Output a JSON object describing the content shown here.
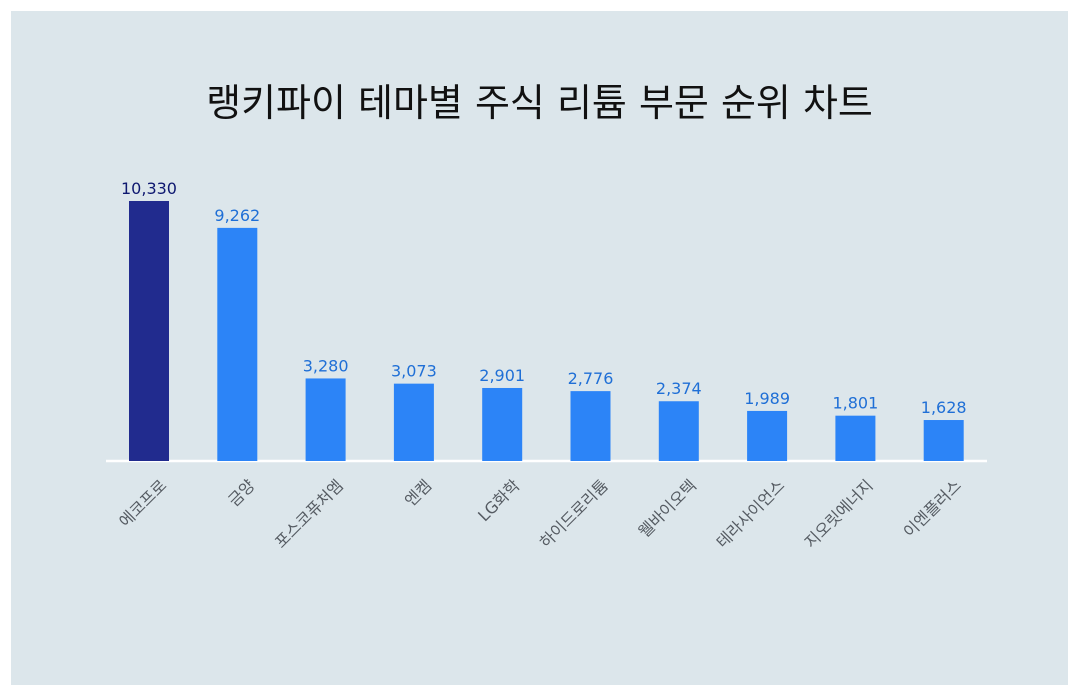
{
  "chart_data": {
    "type": "bar",
    "title": "랭키파이 테마별 주식 리튬 부문 순위 차트",
    "categories": [
      "에코프로",
      "금양",
      "포스코퓨처엠",
      "엔켐",
      "LG화학",
      "하이드로리튬",
      "웰바이오텍",
      "테라사이언스",
      "지오릿에너지",
      "이엔플러스"
    ],
    "values": [
      10330,
      9262,
      3280,
      3073,
      2901,
      2776,
      2374,
      1989,
      1801,
      1628
    ],
    "value_labels": [
      "10,330",
      "9,262",
      "3,280",
      "3,073",
      "2,901",
      "2,776",
      "2,374",
      "1,989",
      "1,801",
      "1,628"
    ],
    "ylim": [
      0,
      10330
    ],
    "grid": false,
    "colors": {
      "highlight_bar": "#212b8e",
      "bar": "#2c84f7",
      "highlight_label": "#0e1870",
      "label": "#1f6fd6",
      "axis": "#ffffff",
      "background": "#dce6eb"
    }
  }
}
